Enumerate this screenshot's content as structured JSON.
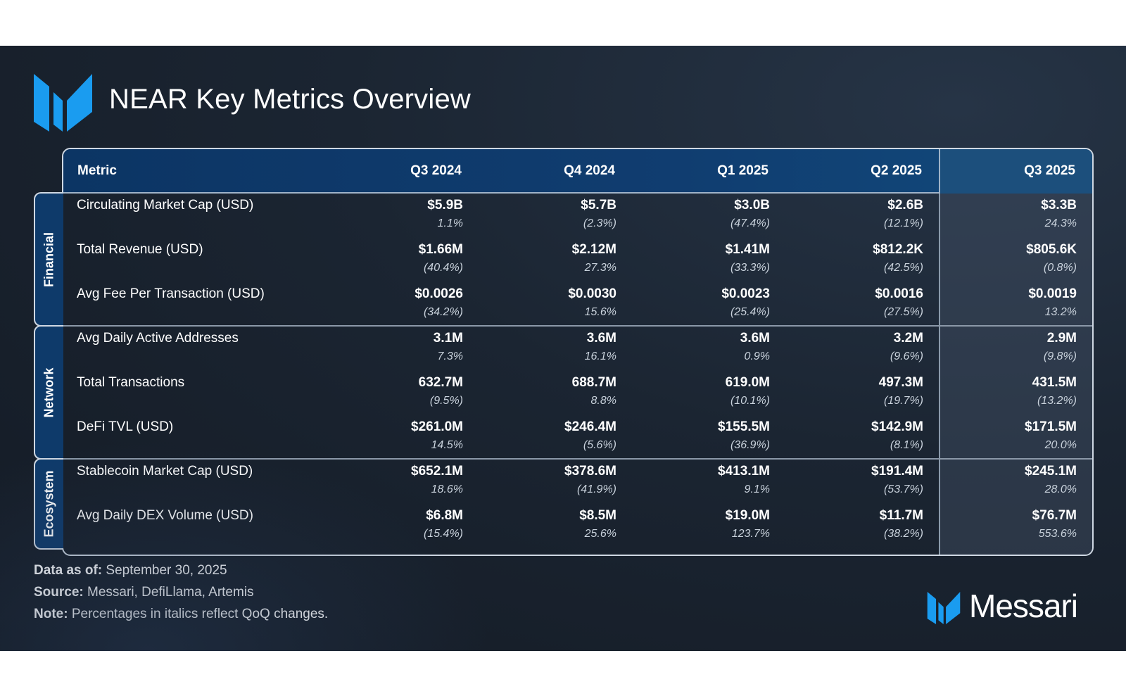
{
  "title": "NEAR Key Metrics Overview",
  "colors": {
    "accent": "#1a9cf0",
    "header_bg": "#0c3564",
    "background": "#1b2532"
  },
  "icons": {
    "logo": "messari-m-logo-icon",
    "brand": "messari-m-logo-icon"
  },
  "chart_data": {
    "type": "table",
    "columns": [
      "Metric",
      "Q3 2024",
      "Q4 2024",
      "Q1 2025",
      "Q2 2025",
      "Q3 2025"
    ],
    "groups": [
      {
        "name": "Financial",
        "rows": [
          {
            "metric": "Circulating Market Cap (USD)",
            "values": [
              "$5.9B",
              "$5.7B",
              "$3.0B",
              "$2.6B",
              "$3.3B"
            ],
            "changes": [
              "1.1%",
              "(2.3%)",
              "(47.4%)",
              "(12.1%)",
              "24.3%"
            ]
          },
          {
            "metric": "Total Revenue (USD)",
            "values": [
              "$1.66M",
              "$2.12M",
              "$1.41M",
              "$812.2K",
              "$805.6K"
            ],
            "changes": [
              "(40.4%)",
              "27.3%",
              "(33.3%)",
              "(42.5%)",
              "(0.8%)"
            ]
          },
          {
            "metric": "Avg Fee Per Transaction (USD)",
            "values": [
              "$0.0026",
              "$0.0030",
              "$0.0023",
              "$0.0016",
              "$0.0019"
            ],
            "changes": [
              "(34.2%)",
              "15.6%",
              "(25.4%)",
              "(27.5%)",
              "13.2%"
            ]
          }
        ]
      },
      {
        "name": "Network",
        "rows": [
          {
            "metric": "Avg Daily Active Addresses",
            "values": [
              "3.1M",
              "3.6M",
              "3.6M",
              "3.2M",
              "2.9M"
            ],
            "changes": [
              "7.3%",
              "16.1%",
              "0.9%",
              "(9.6%)",
              "(9.8%)"
            ]
          },
          {
            "metric": "Total Transactions",
            "values": [
              "632.7M",
              "688.7M",
              "619.0M",
              "497.3M",
              "431.5M"
            ],
            "changes": [
              "(9.5%)",
              "8.8%",
              "(10.1%)",
              "(19.7%)",
              "(13.2%)"
            ]
          },
          {
            "metric": "DeFi TVL (USD)",
            "values": [
              "$261.0M",
              "$246.4M",
              "$155.5M",
              "$142.9M",
              "$171.5M"
            ],
            "changes": [
              "14.5%",
              "(5.6%)",
              "(36.9%)",
              "(8.1%)",
              "20.0%"
            ]
          }
        ]
      },
      {
        "name": "Ecosystem",
        "rows": [
          {
            "metric": "Stablecoin Market Cap (USD)",
            "values": [
              "$652.1M",
              "$378.6M",
              "$413.1M",
              "$191.4M",
              "$245.1M"
            ],
            "changes": [
              "18.6%",
              "(41.9%)",
              "9.1%",
              "(53.7%)",
              "28.0%"
            ]
          },
          {
            "metric": "Avg Daily DEX Volume (USD)",
            "values": [
              "$6.8M",
              "$8.5M",
              "$19.0M",
              "$11.7M",
              "$76.7M"
            ],
            "changes": [
              "(15.4%)",
              "25.6%",
              "123.7%",
              "(38.2%)",
              "553.6%"
            ]
          }
        ]
      }
    ]
  },
  "footer": {
    "data_as_of_label": "Data as of:",
    "data_as_of_value": " September 30, 2025",
    "source_label": "Source:",
    "source_value": " Messari, DefiLlama, Artemis",
    "note_label": "Note:",
    "note_value": " Percentages in italics reflect QoQ changes."
  },
  "brand": {
    "name": "Messari"
  }
}
